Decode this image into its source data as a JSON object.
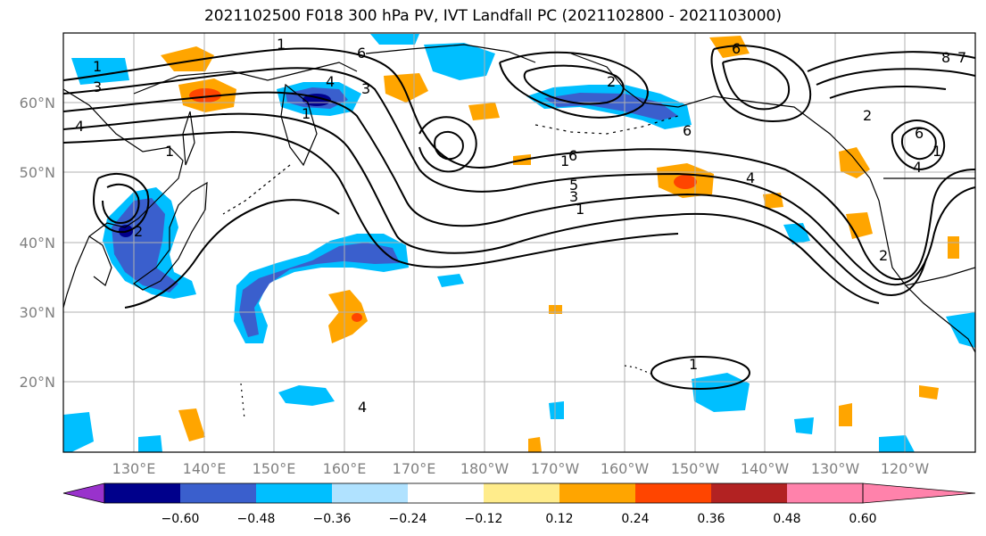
{
  "title": "2021102500 F018 300 hPa PV, IVT Landfall PC (2021102800 - 2021103000)",
  "lat_labels": [
    "60°N",
    "50°N",
    "40°N",
    "30°N",
    "20°N"
  ],
  "lon_labels": [
    "130°E",
    "140°E",
    "150°E",
    "160°E",
    "170°E",
    "180°W",
    "170°W",
    "160°W",
    "150°W",
    "140°W",
    "130°W",
    "120°W"
  ],
  "colorbar": {
    "ticks": [
      "−0.60",
      "−0.48",
      "−0.36",
      "−0.24",
      "−0.12",
      "0.12",
      "0.24",
      "0.36",
      "0.48",
      "0.60"
    ],
    "colors": [
      "#9932cc",
      "#00008b",
      "#3a5fcd",
      "#00bfff",
      "#b0e2ff",
      "#ffffff",
      "#ffec8b",
      "#ffa500",
      "#ff4500",
      "#b22222",
      "#ff82ab"
    ]
  },
  "contour_labels": [
    "1",
    "3",
    "4",
    "1",
    "1",
    "6",
    "3",
    "1",
    "4",
    "2",
    "6",
    "1",
    "2",
    "6",
    "5",
    "3",
    "1",
    "4",
    "6",
    "2",
    "6",
    "1",
    "8",
    "7",
    "4",
    "2",
    "4",
    "1"
  ]
}
